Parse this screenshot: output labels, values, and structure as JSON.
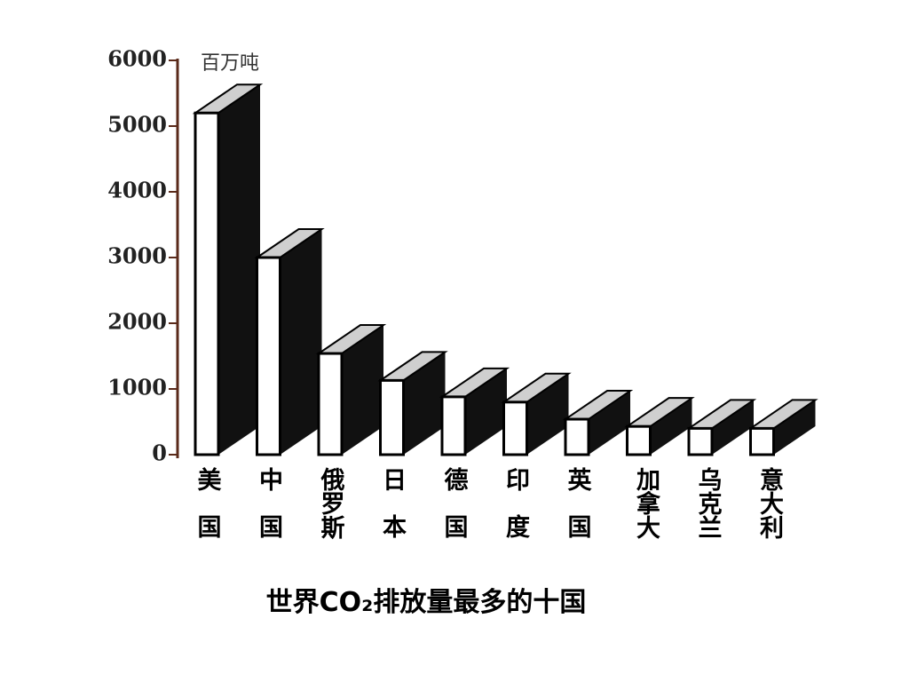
{
  "chart_data": {
    "type": "bar3d",
    "title": "世界CO₂排放量最多的十国",
    "y_unit": "百万吨",
    "categories": [
      "美国",
      "中国",
      "俄罗斯",
      "日本",
      "德国",
      "印度",
      "英国",
      "加拿大",
      "乌克兰",
      "意大利"
    ],
    "values": [
      5200,
      3000,
      1540,
      1130,
      880,
      800,
      540,
      430,
      400,
      400
    ],
    "ylim": [
      0,
      6000
    ],
    "yticks": [
      0,
      1000,
      2000,
      3000,
      4000,
      5000,
      6000
    ],
    "color": "#ffffff",
    "side_color": "#111111",
    "top_color": "#cfcfcf"
  }
}
